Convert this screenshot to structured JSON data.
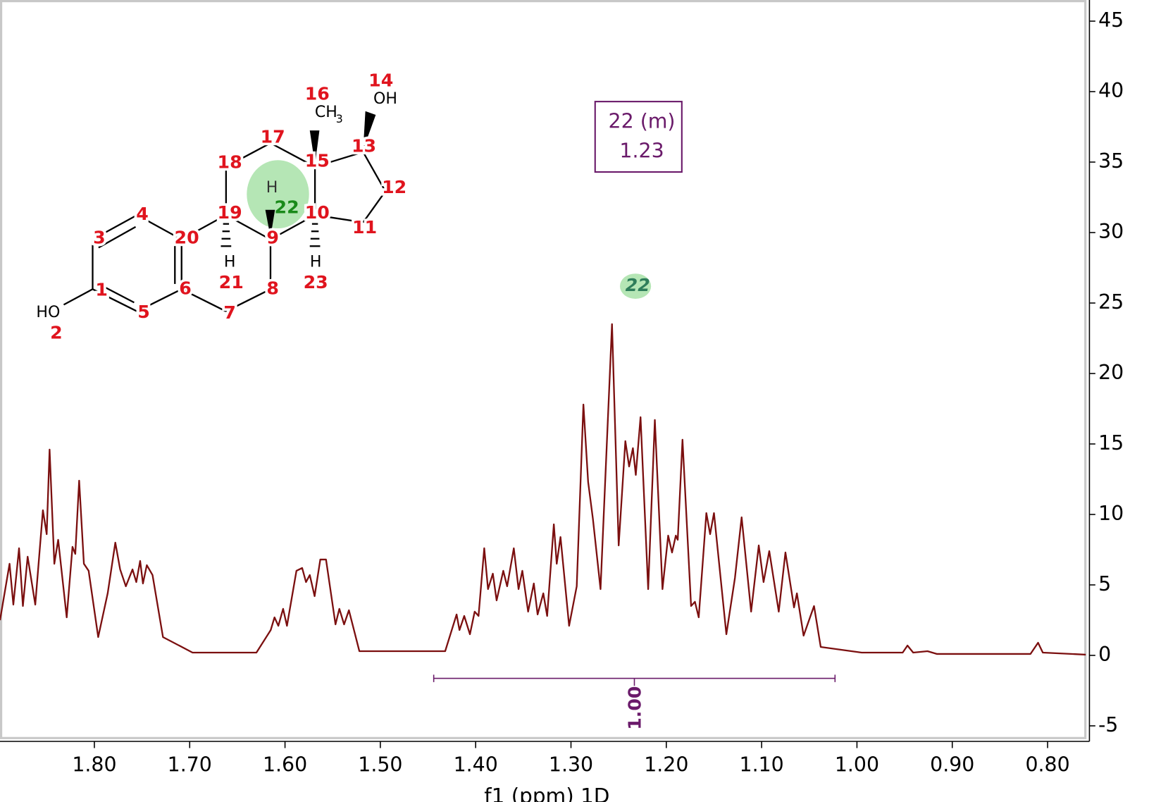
{
  "chart_data": {
    "type": "line",
    "x_label": "f1 (ppm) 1D",
    "color": "#7b0f0f",
    "xlim": [
      1.899,
      0.76
    ],
    "ylim": [
      -5.84,
      46.5
    ],
    "xticks": [
      {
        "value": 1.8,
        "label": "1.80"
      },
      {
        "value": 1.7,
        "label": "1.70"
      },
      {
        "value": 1.6,
        "label": "1.60"
      },
      {
        "value": 1.5,
        "label": "1.50"
      },
      {
        "value": 1.4,
        "label": "1.40"
      },
      {
        "value": 1.3,
        "label": "1.30"
      },
      {
        "value": 1.2,
        "label": "1.20"
      },
      {
        "value": 1.1,
        "label": "1.10"
      },
      {
        "value": 1.0,
        "label": "1.00"
      },
      {
        "value": 0.9,
        "label": "0.90"
      },
      {
        "value": 0.8,
        "label": "0.80"
      }
    ],
    "yticks": [
      -5,
      0,
      5,
      10,
      15,
      20,
      25,
      30,
      35,
      40,
      45
    ],
    "x": [
      1.899,
      1.889,
      1.885,
      1.879,
      1.875,
      1.87,
      1.862,
      1.854,
      1.85,
      1.847,
      1.842,
      1.838,
      1.829,
      1.823,
      1.82,
      1.816,
      1.811,
      1.806,
      1.796,
      1.786,
      1.778,
      1.773,
      1.767,
      1.76,
      1.756,
      1.752,
      1.749,
      1.745,
      1.739,
      1.728,
      1.697,
      1.63,
      1.615,
      1.611,
      1.607,
      1.602,
      1.598,
      1.588,
      1.582,
      1.578,
      1.574,
      1.569,
      1.563,
      1.557,
      1.547,
      1.543,
      1.538,
      1.533,
      1.522,
      1.432,
      1.42,
      1.417,
      1.412,
      1.406,
      1.401,
      1.397,
      1.391,
      1.387,
      1.382,
      1.378,
      1.371,
      1.367,
      1.36,
      1.355,
      1.351,
      1.345,
      1.339,
      1.335,
      1.329,
      1.325,
      1.318,
      1.315,
      1.311,
      1.302,
      1.294,
      1.287,
      1.282,
      1.277,
      1.269,
      1.257,
      1.25,
      1.243,
      1.239,
      1.235,
      1.232,
      1.227,
      1.219,
      1.212,
      1.204,
      1.198,
      1.194,
      1.19,
      1.188,
      1.183,
      1.174,
      1.17,
      1.166,
      1.158,
      1.154,
      1.15,
      1.137,
      1.128,
      1.121,
      1.111,
      1.103,
      1.098,
      1.092,
      1.082,
      1.075,
      1.066,
      1.063,
      1.056,
      1.045,
      1.038,
      0.995,
      0.952,
      0.947,
      0.941,
      0.926,
      0.916,
      0.818,
      0.81,
      0.805,
      0.76
    ],
    "values": [
      2.5,
      6.5,
      3.6,
      7.6,
      3.5,
      7.0,
      3.6,
      10.3,
      8.6,
      14.6,
      6.5,
      8.2,
      2.7,
      7.7,
      7.2,
      12.4,
      6.5,
      6.0,
      1.3,
      4.4,
      8.0,
      6.1,
      4.9,
      6.1,
      5.2,
      6.7,
      5.1,
      6.4,
      5.7,
      1.3,
      0.2,
      0.2,
      1.8,
      2.7,
      2.1,
      3.3,
      2.1,
      6.0,
      6.2,
      5.2,
      5.7,
      4.2,
      6.8,
      6.8,
      2.2,
      3.3,
      2.2,
      3.2,
      0.3,
      0.3,
      2.9,
      1.8,
      2.8,
      1.5,
      3.1,
      2.8,
      7.6,
      4.7,
      5.8,
      3.9,
      6.0,
      4.9,
      7.6,
      4.7,
      6.0,
      3.1,
      5.1,
      2.9,
      4.4,
      2.8,
      9.3,
      6.5,
      8.4,
      2.1,
      4.9,
      17.8,
      12.3,
      9.7,
      4.7,
      23.5,
      7.8,
      15.2,
      13.4,
      14.7,
      12.8,
      16.9,
      4.7,
      16.7,
      4.7,
      8.5,
      7.3,
      8.5,
      8.2,
      15.3,
      3.5,
      3.8,
      2.7,
      10.1,
      8.6,
      10.1,
      1.5,
      5.5,
      9.8,
      3.1,
      7.8,
      5.2,
      7.4,
      3.1,
      7.3,
      3.4,
      4.4,
      1.4,
      3.5,
      0.6,
      0.2,
      0.2,
      0.7,
      0.2,
      0.3,
      0.1,
      0.1,
      0.9,
      0.2,
      0.05
    ],
    "integral": {
      "range": [
        1.444,
        1.023
      ],
      "value": 1,
      "value_label": "1.00"
    },
    "annotation": {
      "label": "22 (m)",
      "shift": 1.23,
      "marker": "22"
    }
  },
  "structure": {
    "atom_numbers": [
      "1",
      "2",
      "3",
      "4",
      "5",
      "6",
      "7",
      "8",
      "9",
      "10",
      "11",
      "12",
      "13",
      "14",
      "15",
      "16",
      "17",
      "18",
      "19",
      "20",
      "21",
      "22",
      "23"
    ],
    "groups": [
      "HO",
      "OH",
      "CH",
      "3",
      "H",
      "H",
      "H"
    ]
  }
}
